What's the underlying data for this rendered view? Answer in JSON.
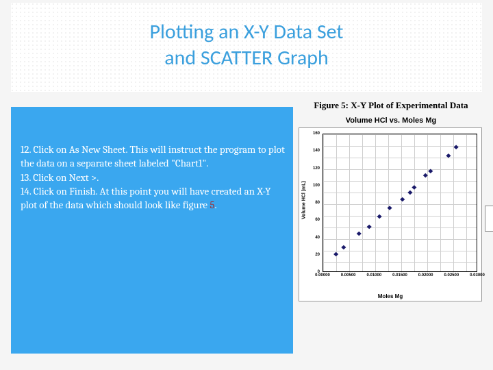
{
  "header": {
    "title_line1": "Plotting an X-Y Data Set",
    "title_line2": "and SCATTER Graph"
  },
  "instructions": {
    "step12": "12. Click on As New Sheet. This will instruct the program to plot the data on a separate sheet labeled \"Chart1\".",
    "step13": "13. Click on Next >.",
    "step14_a": "14. Click on Finish. At this point you will have created an X-Y plot of the data which should look like figure ",
    "step14_num": "5",
    "step14_b": "."
  },
  "chart": {
    "figure_caption": "Figure 5: X-Y Plot of Experimental Data",
    "title": "Volume HCl vs. Moles Mg",
    "x_label": "Moles Mg",
    "y_label": "Volume HCl (mL)",
    "type": "scatter",
    "marker_shape": "diamond",
    "marker_color": "#1a1a6a",
    "marker_size": 3.2,
    "background_color": "#ffffff",
    "grid_color": "#d0d0d0",
    "border_color": "#000000",
    "xlim": [
      0.0,
      0.03
    ],
    "ylim": [
      0,
      160
    ],
    "x_ticks": [
      "0.00000",
      "0.00500",
      "0.01000",
      "0.01500",
      "0.02000",
      "0.02500",
      "0.03000"
    ],
    "y_ticks": [
      "0",
      "20",
      "40",
      "60",
      "80",
      "100",
      "120",
      "140",
      "160"
    ],
    "points": [
      {
        "x": 0.0025,
        "y": 20
      },
      {
        "x": 0.004,
        "y": 28
      },
      {
        "x": 0.007,
        "y": 44
      },
      {
        "x": 0.009,
        "y": 52
      },
      {
        "x": 0.011,
        "y": 64
      },
      {
        "x": 0.013,
        "y": 74
      },
      {
        "x": 0.0155,
        "y": 84
      },
      {
        "x": 0.017,
        "y": 92
      },
      {
        "x": 0.0178,
        "y": 98
      },
      {
        "x": 0.02,
        "y": 112
      },
      {
        "x": 0.021,
        "y": 117
      },
      {
        "x": 0.0245,
        "y": 135
      },
      {
        "x": 0.026,
        "y": 145
      }
    ]
  },
  "colors": {
    "accent_blue": "#3a9fdd",
    "panel_blue": "#3aa7ef",
    "highlight_red": "#a52a2a"
  }
}
